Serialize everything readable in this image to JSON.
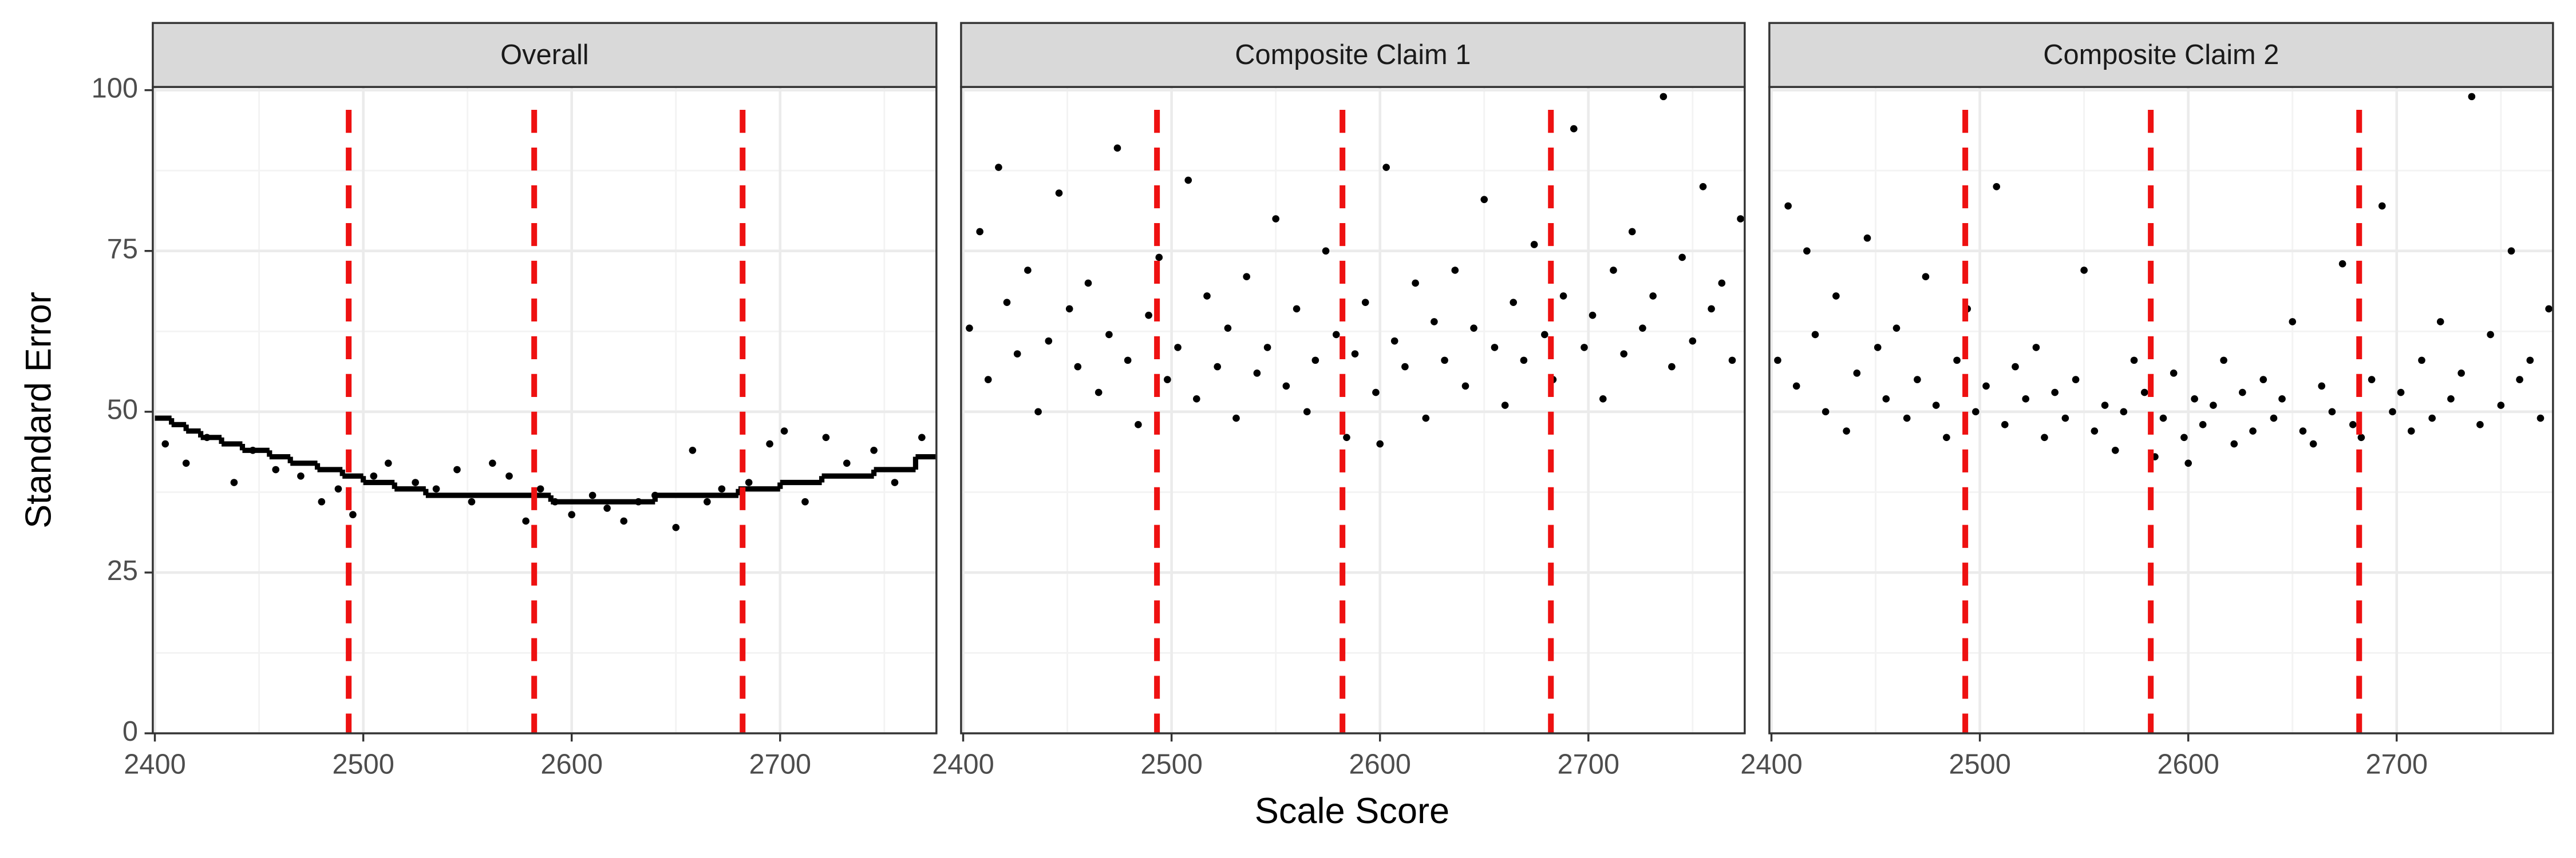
{
  "chart_data": {
    "type": "scatter",
    "x_label": "Scale Score",
    "y_label": "Standard Error",
    "xlim": [
      2399,
      2775
    ],
    "ylim": [
      0,
      100.5
    ],
    "xticks": [
      2400,
      2500,
      2600,
      2700
    ],
    "yticks": [
      0,
      25,
      50,
      75,
      100
    ],
    "minor_xticks": [
      2450,
      2550,
      2650,
      2750
    ],
    "minor_yticks": [
      12.5,
      37.5,
      62.5,
      87.5
    ],
    "grid": true,
    "point_color": "#000000",
    "cut_scores": [
      2493,
      2582,
      2682
    ],
    "cut_color": "#ee1111",
    "panels": [
      {
        "title": "Overall",
        "step": {
          "x": [
            2400,
            2408,
            2415,
            2422,
            2432,
            2442,
            2455,
            2465,
            2478,
            2490,
            2500,
            2515,
            2530,
            2590,
            2640,
            2680,
            2700,
            2720,
            2745,
            2765
          ],
          "values": [
            49,
            48,
            47,
            46,
            45,
            44,
            43,
            42,
            41,
            40,
            39,
            38,
            37,
            36,
            37,
            38,
            39,
            40,
            41,
            43
          ]
        },
        "points": {
          "x": [
            2405,
            2415,
            2425,
            2438,
            2447,
            2458,
            2470,
            2480,
            2488,
            2495,
            2505,
            2512,
            2525,
            2535,
            2545,
            2552,
            2562,
            2570,
            2578,
            2585,
            2592,
            2600,
            2610,
            2617,
            2625,
            2632,
            2640,
            2650,
            2658,
            2665,
            2672,
            2685,
            2695,
            2702,
            2712,
            2722,
            2732,
            2745,
            2755,
            2768
          ],
          "values": [
            45,
            42,
            46,
            39,
            44,
            41,
            40,
            36,
            38,
            34,
            40,
            42,
            39,
            38,
            41,
            36,
            42,
            40,
            33,
            38,
            36,
            34,
            37,
            35,
            33,
            36,
            37,
            32,
            44,
            36,
            38,
            39,
            45,
            47,
            36,
            46,
            42,
            44,
            39,
            46
          ]
        }
      },
      {
        "title": "Composite Claim 1",
        "points": {
          "x": [
            2403,
            2408,
            2412,
            2417,
            2421,
            2426,
            2431,
            2436,
            2441,
            2446,
            2451,
            2455,
            2460,
            2465,
            2470,
            2474,
            2479,
            2484,
            2489,
            2494,
            2498,
            2503,
            2508,
            2512,
            2517,
            2522,
            2527,
            2531,
            2536,
            2541,
            2546,
            2550,
            2555,
            2560,
            2565,
            2569,
            2574,
            2579,
            2584,
            2588,
            2593,
            2598,
            2603,
            2607,
            2612,
            2617,
            2622,
            2626,
            2631,
            2636,
            2641,
            2645,
            2650,
            2655,
            2660,
            2664,
            2669,
            2674,
            2679,
            2683,
            2688,
            2693,
            2698,
            2702,
            2707,
            2712,
            2717,
            2721,
            2726,
            2731,
            2736,
            2740,
            2745,
            2750,
            2755,
            2759,
            2764,
            2769,
            2773,
            2600
          ],
          "values": [
            63,
            78,
            55,
            88,
            67,
            59,
            72,
            50,
            61,
            84,
            66,
            57,
            70,
            53,
            62,
            91,
            58,
            48,
            65,
            74,
            55,
            60,
            86,
            52,
            68,
            57,
            63,
            49,
            71,
            56,
            60,
            80,
            54,
            66,
            50,
            58,
            75,
            62,
            46,
            59,
            67,
            53,
            88,
            61,
            57,
            70,
            49,
            64,
            58,
            72,
            54,
            63,
            83,
            60,
            51,
            67,
            58,
            76,
            62,
            55,
            68,
            94,
            60,
            65,
            52,
            72,
            59,
            78,
            63,
            68,
            99,
            57,
            74,
            61,
            85,
            66,
            70,
            58,
            80,
            45
          ]
        }
      },
      {
        "title": "Composite Claim 2",
        "points": {
          "x": [
            2403,
            2408,
            2412,
            2417,
            2421,
            2426,
            2431,
            2436,
            2441,
            2446,
            2451,
            2455,
            2460,
            2465,
            2470,
            2474,
            2479,
            2484,
            2489,
            2494,
            2498,
            2503,
            2508,
            2512,
            2517,
            2522,
            2527,
            2531,
            2536,
            2541,
            2546,
            2550,
            2555,
            2560,
            2565,
            2569,
            2574,
            2579,
            2584,
            2588,
            2593,
            2598,
            2603,
            2607,
            2612,
            2617,
            2622,
            2626,
            2631,
            2636,
            2641,
            2645,
            2650,
            2655,
            2660,
            2664,
            2669,
            2674,
            2679,
            2683,
            2688,
            2693,
            2698,
            2702,
            2707,
            2712,
            2717,
            2721,
            2726,
            2731,
            2736,
            2740,
            2745,
            2750,
            2755,
            2759,
            2764,
            2769,
            2773,
            2600
          ],
          "values": [
            58,
            82,
            54,
            75,
            62,
            50,
            68,
            47,
            56,
            77,
            60,
            52,
            63,
            49,
            55,
            71,
            51,
            46,
            58,
            66,
            50,
            54,
            85,
            48,
            57,
            52,
            60,
            46,
            53,
            49,
            55,
            72,
            47,
            51,
            44,
            50,
            58,
            53,
            43,
            49,
            56,
            46,
            52,
            48,
            51,
            58,
            45,
            53,
            47,
            55,
            49,
            52,
            64,
            47,
            45,
            54,
            50,
            73,
            48,
            46,
            55,
            82,
            50,
            53,
            47,
            58,
            49,
            64,
            52,
            56,
            99,
            48,
            62,
            51,
            75,
            55,
            58,
            49,
            66,
            42
          ]
        }
      }
    ]
  }
}
